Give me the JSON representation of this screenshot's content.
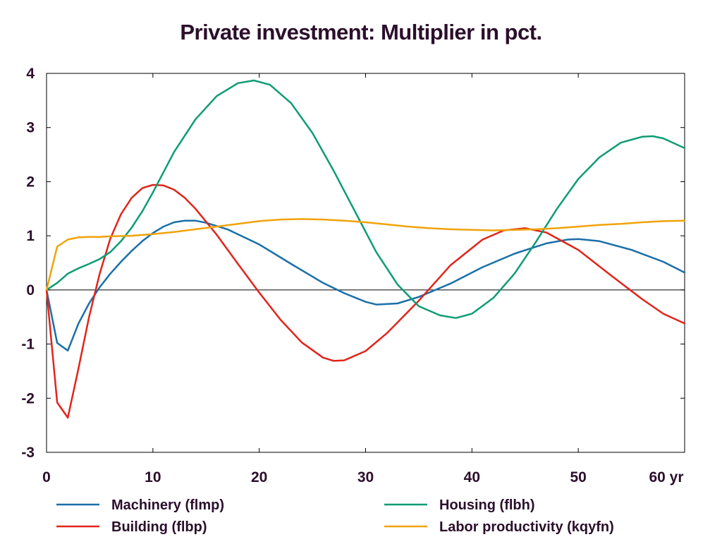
{
  "chart_data": {
    "type": "line",
    "title": "Private investment: Multiplier in pct.",
    "xlabel": "",
    "ylabel": "",
    "x_unit_label": "yr",
    "xlim": [
      0,
      60
    ],
    "ylim": [
      -3,
      4
    ],
    "x_ticks": [
      0,
      10,
      20,
      30,
      40,
      50,
      60
    ],
    "y_ticks": [
      -3,
      -2,
      -1,
      0,
      1,
      2,
      3,
      4
    ],
    "zero_line": true,
    "grid": false,
    "legend_position": "bottom",
    "series": [
      {
        "name": "Machinery (flmp)",
        "color": "#1a6fa8",
        "points": [
          [
            0,
            0
          ],
          [
            1,
            -0.98
          ],
          [
            2,
            -1.12
          ],
          [
            3,
            -0.62
          ],
          [
            4,
            -0.25
          ],
          [
            5,
            0.05
          ],
          [
            6,
            0.3
          ],
          [
            7,
            0.52
          ],
          [
            8,
            0.72
          ],
          [
            9,
            0.9
          ],
          [
            10,
            1.05
          ],
          [
            11,
            1.17
          ],
          [
            12,
            1.25
          ],
          [
            13,
            1.28
          ],
          [
            14,
            1.28
          ],
          [
            15,
            1.24
          ],
          [
            17,
            1.12
          ],
          [
            20,
            0.84
          ],
          [
            23,
            0.48
          ],
          [
            26,
            0.13
          ],
          [
            28,
            -0.06
          ],
          [
            30,
            -0.22
          ],
          [
            31,
            -0.27
          ],
          [
            33,
            -0.25
          ],
          [
            35,
            -0.13
          ],
          [
            38,
            0.12
          ],
          [
            41,
            0.42
          ],
          [
            44,
            0.67
          ],
          [
            47,
            0.86
          ],
          [
            49,
            0.93
          ],
          [
            50,
            0.94
          ],
          [
            52,
            0.9
          ],
          [
            55,
            0.74
          ],
          [
            58,
            0.52
          ],
          [
            60,
            0.32
          ]
        ]
      },
      {
        "name": "Building (flbp)",
        "color": "#e0251b",
        "points": [
          [
            0,
            0
          ],
          [
            1,
            -2.08
          ],
          [
            2,
            -2.36
          ],
          [
            3,
            -1.45
          ],
          [
            4,
            -0.5
          ],
          [
            5,
            0.3
          ],
          [
            6,
            0.95
          ],
          [
            7,
            1.4
          ],
          [
            8,
            1.7
          ],
          [
            9,
            1.88
          ],
          [
            10,
            1.94
          ],
          [
            11,
            1.93
          ],
          [
            12,
            1.85
          ],
          [
            13,
            1.7
          ],
          [
            14,
            1.5
          ],
          [
            16,
            1.02
          ],
          [
            18,
            0.48
          ],
          [
            20,
            -0.05
          ],
          [
            22,
            -0.55
          ],
          [
            24,
            -0.97
          ],
          [
            26,
            -1.25
          ],
          [
            27,
            -1.31
          ],
          [
            28,
            -1.3
          ],
          [
            30,
            -1.13
          ],
          [
            32,
            -0.8
          ],
          [
            35,
            -0.2
          ],
          [
            38,
            0.46
          ],
          [
            41,
            0.93
          ],
          [
            43,
            1.1
          ],
          [
            45,
            1.14
          ],
          [
            47,
            1.06
          ],
          [
            50,
            0.74
          ],
          [
            53,
            0.28
          ],
          [
            56,
            -0.17
          ],
          [
            58,
            -0.44
          ],
          [
            60,
            -0.62
          ]
        ]
      },
      {
        "name": "Housing (flbh)",
        "color": "#0e9c74",
        "points": [
          [
            0,
            0
          ],
          [
            1,
            0.13
          ],
          [
            2,
            0.3
          ],
          [
            3,
            0.4
          ],
          [
            4,
            0.48
          ],
          [
            5,
            0.57
          ],
          [
            6,
            0.7
          ],
          [
            7,
            0.9
          ],
          [
            8,
            1.15
          ],
          [
            9,
            1.45
          ],
          [
            10,
            1.8
          ],
          [
            12,
            2.55
          ],
          [
            14,
            3.15
          ],
          [
            16,
            3.58
          ],
          [
            18,
            3.82
          ],
          [
            19.5,
            3.87
          ],
          [
            21,
            3.79
          ],
          [
            23,
            3.45
          ],
          [
            25,
            2.9
          ],
          [
            27,
            2.2
          ],
          [
            29,
            1.45
          ],
          [
            31,
            0.7
          ],
          [
            33,
            0.1
          ],
          [
            35,
            -0.3
          ],
          [
            37,
            -0.47
          ],
          [
            38.5,
            -0.52
          ],
          [
            40,
            -0.44
          ],
          [
            42,
            -0.15
          ],
          [
            44,
            0.3
          ],
          [
            46,
            0.88
          ],
          [
            48,
            1.5
          ],
          [
            50,
            2.05
          ],
          [
            52,
            2.45
          ],
          [
            54,
            2.72
          ],
          [
            56,
            2.83
          ],
          [
            57,
            2.84
          ],
          [
            58,
            2.8
          ],
          [
            60,
            2.62
          ]
        ]
      },
      {
        "name": "Labor productivity (kqyfn)",
        "color": "#f0a30a",
        "points": [
          [
            0,
            0
          ],
          [
            1,
            0.8
          ],
          [
            2,
            0.93
          ],
          [
            3,
            0.97
          ],
          [
            4,
            0.98
          ],
          [
            5,
            0.98
          ],
          [
            6,
            0.99
          ],
          [
            8,
            1.0
          ],
          [
            10,
            1.03
          ],
          [
            12,
            1.07
          ],
          [
            14,
            1.12
          ],
          [
            16,
            1.17
          ],
          [
            18,
            1.22
          ],
          [
            20,
            1.27
          ],
          [
            22,
            1.3
          ],
          [
            24,
            1.31
          ],
          [
            26,
            1.3
          ],
          [
            28,
            1.28
          ],
          [
            30,
            1.25
          ],
          [
            32,
            1.21
          ],
          [
            34,
            1.17
          ],
          [
            36,
            1.14
          ],
          [
            38,
            1.12
          ],
          [
            40,
            1.11
          ],
          [
            42,
            1.1
          ],
          [
            44,
            1.11
          ],
          [
            46,
            1.12
          ],
          [
            48,
            1.14
          ],
          [
            50,
            1.17
          ],
          [
            52,
            1.2
          ],
          [
            54,
            1.22
          ],
          [
            56,
            1.25
          ],
          [
            58,
            1.27
          ],
          [
            60,
            1.28
          ]
        ]
      }
    ]
  }
}
